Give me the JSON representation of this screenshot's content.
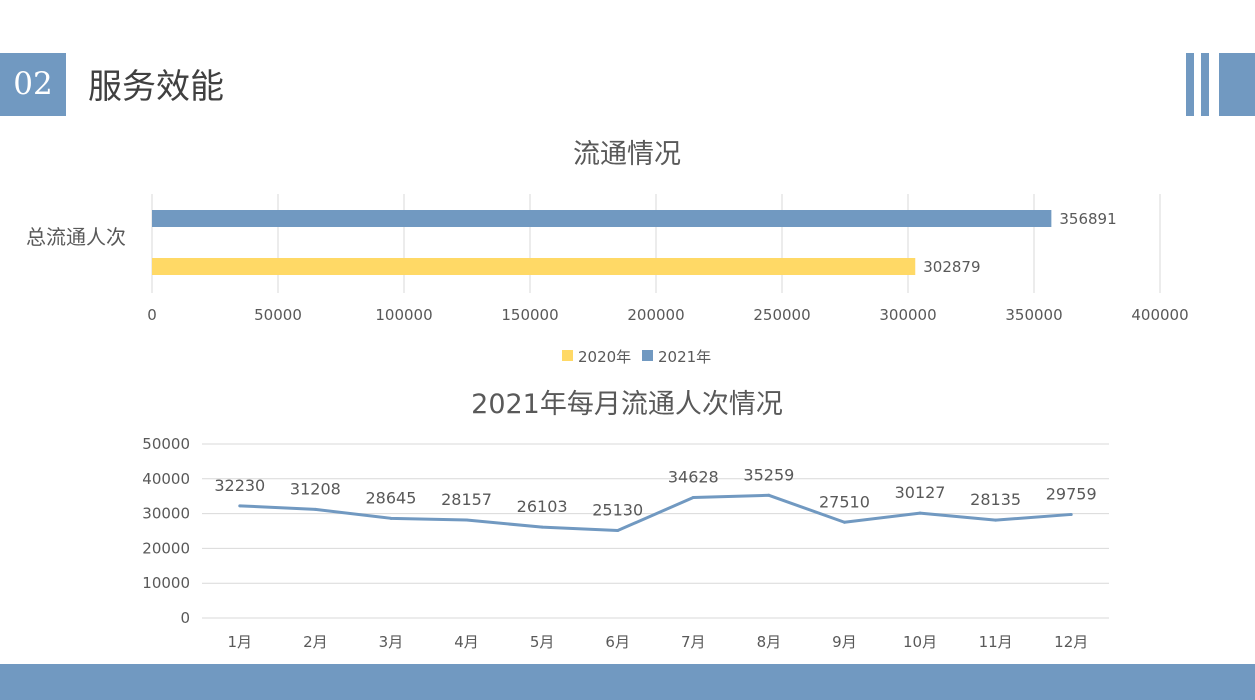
{
  "header": {
    "section_number": "02",
    "section_title": "服务效能"
  },
  "colors": {
    "accent": "#7199c1",
    "series_2020": "#ffd966",
    "series_2021": "#7199c1"
  },
  "chart_data": [
    {
      "type": "bar",
      "orientation": "horizontal",
      "title": "流通情况",
      "categories": [
        "总流通人次"
      ],
      "series": [
        {
          "name": "2021年",
          "values": [
            356891
          ]
        },
        {
          "name": "2020年",
          "values": [
            302879
          ]
        }
      ],
      "legend": [
        "2020年",
        "2021年"
      ],
      "legend_position": "bottom",
      "xlim": [
        0,
        400000
      ],
      "x_ticks": [
        "0",
        "50000",
        "100000",
        "150000",
        "200000",
        "250000",
        "300000",
        "350000",
        "400000"
      ],
      "grid": true
    },
    {
      "type": "line",
      "title": "2021年每月流通人次情况",
      "categories": [
        "1月",
        "2月",
        "3月",
        "4月",
        "5月",
        "6月",
        "7月",
        "8月",
        "9月",
        "10月",
        "11月",
        "12月"
      ],
      "values": [
        32230,
        31208,
        28645,
        28157,
        26103,
        25130,
        34628,
        35259,
        27510,
        30127,
        28135,
        29759
      ],
      "ylim": [
        0,
        50000
      ],
      "y_ticks": [
        "0",
        "10000",
        "20000",
        "30000",
        "40000",
        "50000"
      ],
      "grid": true
    }
  ]
}
